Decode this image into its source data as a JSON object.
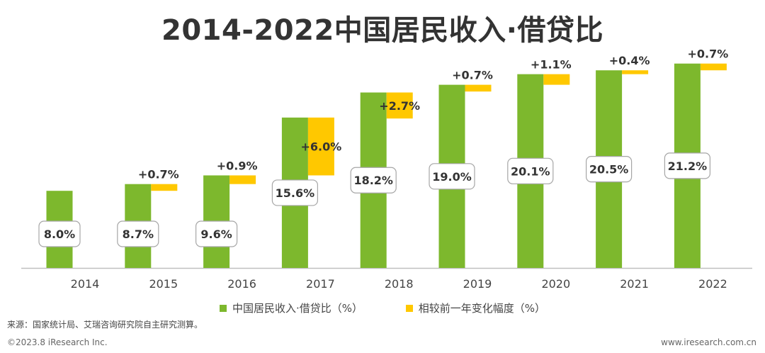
{
  "chart_data": {
    "type": "bar",
    "title": "2014-2022中国居民收入·借贷比",
    "categories": [
      "2014",
      "2015",
      "2016",
      "2017",
      "2018",
      "2019",
      "2020",
      "2021",
      "2022"
    ],
    "series": [
      {
        "name": "中国居民收入·借贷比（%）",
        "color": "#7DB82D",
        "values": [
          8.0,
          8.7,
          9.6,
          15.6,
          18.2,
          19.0,
          20.1,
          20.5,
          21.2
        ],
        "labels": [
          "8.0%",
          "8.7%",
          "9.6%",
          "15.6%",
          "18.2%",
          "19.0%",
          "20.1%",
          "20.5%",
          "21.2%"
        ]
      },
      {
        "name": "相较前一年变化幅度（%）",
        "color": "#FFC800",
        "values": [
          null,
          0.7,
          0.9,
          6.0,
          2.7,
          0.7,
          1.1,
          0.4,
          0.7
        ],
        "labels": [
          "",
          "+0.7%",
          "+0.9%",
          "+6.0%",
          "+2.7%",
          "+0.7%",
          "+1.1%",
          "+0.4%",
          "+0.7%"
        ]
      }
    ],
    "xlabel": "",
    "ylabel": "",
    "ylim": [
      0,
      24
    ],
    "grid": false,
    "legend_position": "bottom"
  },
  "footer": {
    "source": "来源：国家统计局、艾瑞咨询研究院自主研究测算。",
    "copyright": "©2023.8 iResearch Inc.",
    "website": "www.iresearch.com.cn"
  }
}
